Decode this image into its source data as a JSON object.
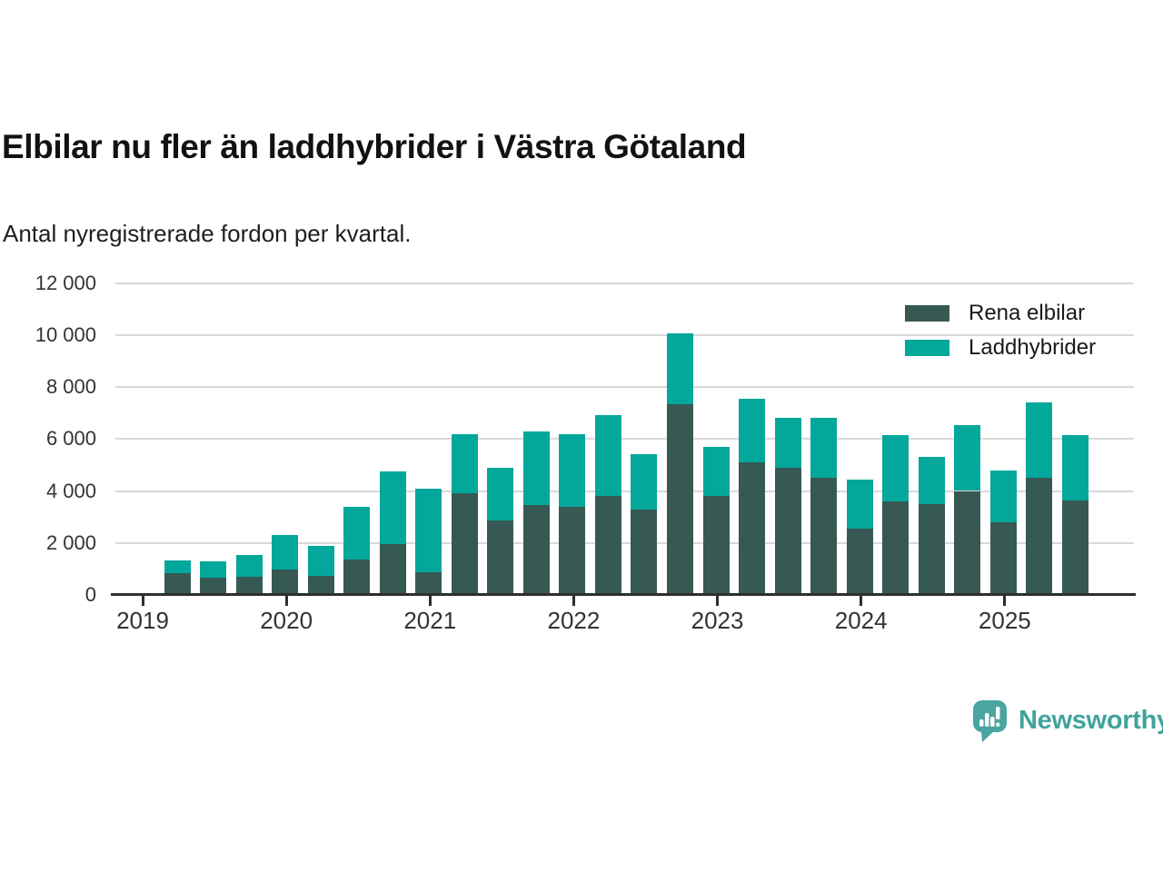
{
  "header": {
    "title": "Elbilar nu fler än laddhybrider i Västra Götaland",
    "subtitle": "Antal nyregistrerade fordon per kvartal."
  },
  "legend": [
    {
      "label": "Rena elbilar",
      "color": "#375953"
    },
    {
      "label": "Laddhybrider",
      "color": "#04a79b"
    }
  ],
  "chart_data": {
    "type": "bar",
    "stacked": true,
    "title": "Elbilar nu fler än laddhybrider i Västra Götaland",
    "subtitle": "Antal nyregistrerade fordon per kvartal.",
    "categories": [
      "2019 K2",
      "2019 K3",
      "2019 K4",
      "2020 K1",
      "2020 K2",
      "2020 K3",
      "2020 K4",
      "2021 K1",
      "2021 K2",
      "2021 K3",
      "2021 K4",
      "2022 K1",
      "2022 K2",
      "2022 K3",
      "2022 K4",
      "2023 K1",
      "2023 K2",
      "2023 K3",
      "2023 K4",
      "2024 K1",
      "2024 K2",
      "2024 K3",
      "2024 K4",
      "2025 K1",
      "2025 K2",
      "2025 K3"
    ],
    "series": [
      {
        "name": "Rena elbilar",
        "color": "#375953",
        "values": [
          850,
          650,
          700,
          990,
          750,
          1350,
          1950,
          870,
          3900,
          2850,
          3450,
          3400,
          3800,
          3300,
          7350,
          3800,
          5100,
          4900,
          4500,
          2550,
          3600,
          3500,
          4000,
          2800,
          4500,
          3650
        ]
      },
      {
        "name": "Laddhybrider",
        "color": "#04a79b",
        "values": [
          480,
          630,
          850,
          1310,
          1150,
          2050,
          2800,
          3230,
          2300,
          2050,
          2850,
          2800,
          3100,
          2100,
          2700,
          1900,
          2450,
          1900,
          2300,
          1900,
          2550,
          1800,
          2550,
          2000,
          2900,
          2500
        ]
      }
    ],
    "ylim": [
      0,
      12000
    ],
    "yticks": [
      0,
      2000,
      4000,
      6000,
      8000,
      10000,
      12000
    ],
    "ytick_labels": [
      "0",
      "2 000",
      "4 000",
      "6 000",
      "8 000",
      "10 000",
      "12 000"
    ],
    "xtick_years": [
      2019,
      2020,
      2021,
      2022,
      2023,
      2024,
      2025
    ],
    "grid": true,
    "legend_position": "top-right"
  },
  "branding": {
    "logo_text": "Newsworthy",
    "color": "#42a39c"
  }
}
